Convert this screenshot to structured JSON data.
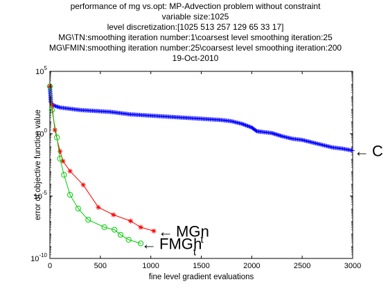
{
  "chart_data": {
    "type": "line",
    "title_lines": [
      "performance of mg vs.opt: MP-Advection problem without constraint",
      "variable size:1025",
      "level discretization:[1025 513 257 129 65 33 17]",
      "MG\\TN:smoothing iteration number:1\\coarsest level smoothing iteration:25",
      "MG\\FMIN:smoothing iteration number:25\\coarsest level smoothing iteration:200",
      "19-Oct-2010"
    ],
    "xlabel": "fine level gradient evaluations",
    "ylabel": "error of objective function value",
    "xlim": [
      0,
      3000
    ],
    "ylog": true,
    "ylim_exp": [
      -10,
      5
    ],
    "x_ticks": [
      0,
      500,
      1000,
      1500,
      2000,
      2500,
      3000
    ],
    "y_ticks_exp": [
      -10,
      -5,
      0,
      5
    ],
    "grid": false,
    "series": [
      {
        "color": "#0000ff",
        "marker": "plus",
        "log10_points": [
          [
            0,
            3.8
          ],
          [
            10,
            2.5
          ],
          [
            30,
            2.3
          ],
          [
            60,
            2.2
          ],
          [
            100,
            2.1
          ],
          [
            200,
            2.0
          ],
          [
            300,
            1.9
          ],
          [
            400,
            1.85
          ],
          [
            500,
            1.8
          ],
          [
            600,
            1.75
          ],
          [
            700,
            1.65
          ],
          [
            800,
            1.55
          ],
          [
            900,
            1.5
          ],
          [
            1000,
            1.45
          ],
          [
            1100,
            1.4
          ],
          [
            1200,
            1.35
          ],
          [
            1300,
            1.3
          ],
          [
            1400,
            1.25
          ],
          [
            1500,
            1.2
          ],
          [
            1600,
            1.15
          ],
          [
            1700,
            1.1
          ],
          [
            1800,
            1.0
          ],
          [
            1900,
            0.8
          ],
          [
            2000,
            0.5
          ],
          [
            2050,
            0.2
          ],
          [
            2100,
            0.15
          ],
          [
            2200,
            0.05
          ],
          [
            2300,
            -0.2
          ],
          [
            2400,
            -0.4
          ],
          [
            2500,
            -0.5
          ],
          [
            2600,
            -0.7
          ],
          [
            2700,
            -0.9
          ],
          [
            2800,
            -1.1
          ],
          [
            2900,
            -1.2
          ],
          [
            3000,
            -1.35
          ]
        ]
      },
      {
        "color": "#ff0000",
        "marker": "star",
        "log10_points": [
          [
            0,
            3.8
          ],
          [
            20,
            2.3
          ],
          [
            50,
            0.3
          ],
          [
            100,
            -1.4
          ],
          [
            130,
            -2.2
          ],
          [
            200,
            -3.0
          ],
          [
            330,
            -4.1
          ],
          [
            480,
            -5.9
          ],
          [
            630,
            -6.5
          ],
          [
            800,
            -7.0
          ],
          [
            900,
            -7.5
          ],
          [
            1030,
            -7.8
          ]
        ]
      },
      {
        "color": "#00cc00",
        "marker": "circle",
        "log10_points": [
          [
            0,
            3.8
          ],
          [
            20,
            1.9
          ],
          [
            70,
            -0.3
          ],
          [
            100,
            -2.0
          ],
          [
            140,
            -3.3
          ],
          [
            200,
            -4.9
          ],
          [
            280,
            -6.0
          ],
          [
            380,
            -6.9
          ],
          [
            540,
            -7.5
          ],
          [
            640,
            -7.7
          ],
          [
            700,
            -8.1
          ],
          [
            780,
            -8.5
          ],
          [
            900,
            -8.8
          ]
        ]
      }
    ],
    "annotations": [
      {
        "arrow": "←",
        "text": "C",
        "sub": ""
      },
      {
        "arrow": "←",
        "text": "MG",
        "sub": "t",
        "tail": "n"
      },
      {
        "arrow": "←",
        "text": "FMG",
        "sub": "t",
        "tail": "h"
      }
    ]
  }
}
